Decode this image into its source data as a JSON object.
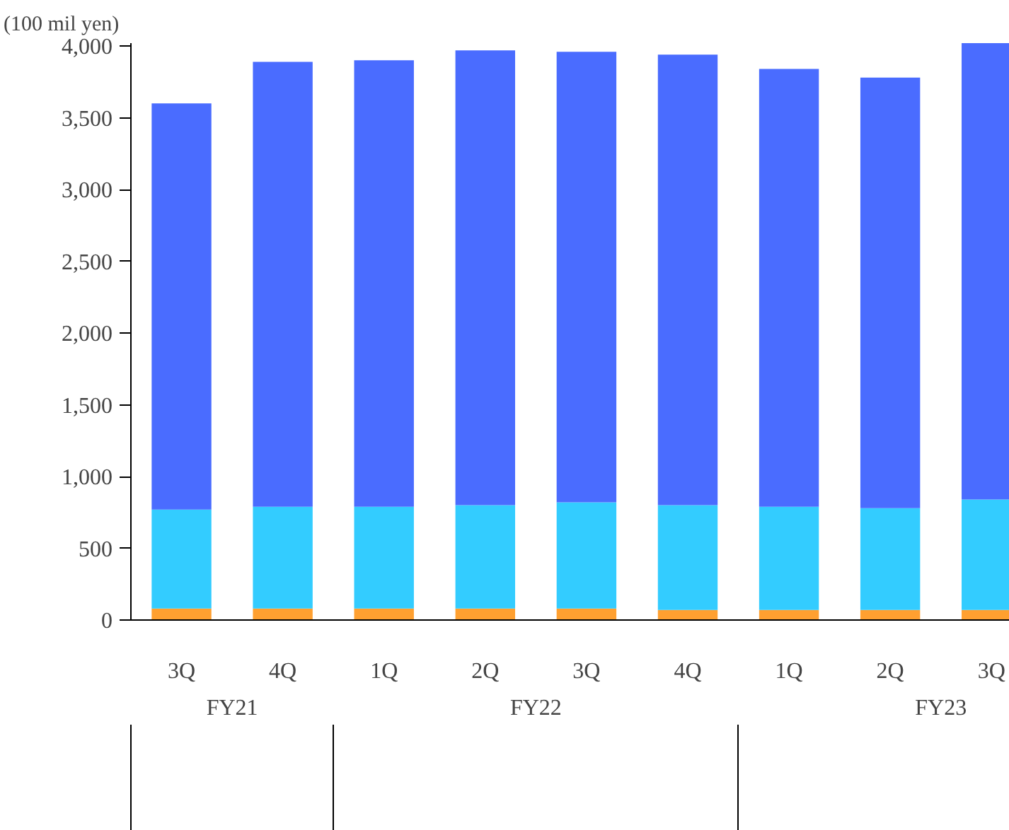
{
  "chart_data": {
    "type": "bar",
    "title": "(100 mil yen)",
    "stacked": true,
    "categories": [
      "3Q",
      "4Q",
      "1Q",
      "2Q",
      "3Q",
      "4Q",
      "1Q",
      "2Q",
      "3Q"
    ],
    "series": [
      {
        "color": "#ffa030",
        "values": [
          80,
          80,
          80,
          80,
          80,
          70,
          70,
          70,
          70
        ]
      },
      {
        "color": "#33ccff",
        "values": [
          690,
          710,
          710,
          720,
          740,
          730,
          720,
          710,
          770
        ]
      },
      {
        "color": "#4a6cff",
        "values": [
          2830,
          3100,
          3110,
          3170,
          3140,
          3140,
          3050,
          3000,
          3180
        ]
      }
    ],
    "ylim": [
      0,
      4020
    ],
    "yticks": [
      0,
      500,
      {
        "value": 1000,
        "label": "1,000"
      },
      {
        "value": 1500,
        "label": "1,500"
      },
      {
        "value": 2000,
        "label": "2,000"
      },
      {
        "value": 2500,
        "label": "2,500"
      },
      {
        "value": 3000,
        "label": "3,000"
      },
      {
        "value": 3500,
        "label": "3,500"
      },
      {
        "value": 4000,
        "label": "4,000"
      }
    ],
    "grid": false,
    "annotations": [
      "FY21",
      "FY22",
      "FY23"
    ]
  }
}
